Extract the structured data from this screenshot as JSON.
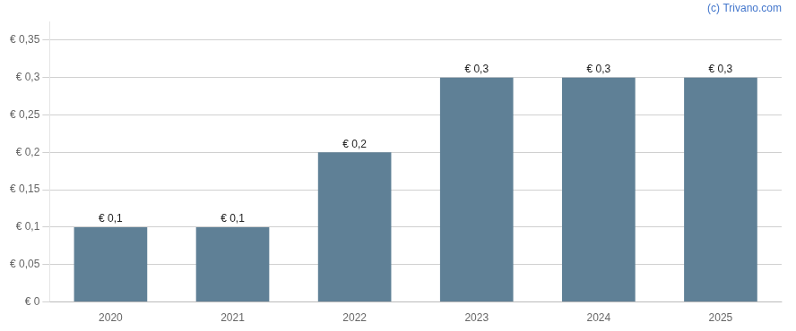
{
  "chart_data": {
    "type": "bar",
    "categories": [
      "2020",
      "2021",
      "2022",
      "2023",
      "2024",
      "2025"
    ],
    "values": [
      0.1,
      0.1,
      0.2,
      0.3,
      0.3,
      0.3
    ],
    "value_labels": [
      "€ 0,1",
      "€ 0,1",
      "€ 0,2",
      "€ 0,3",
      "€ 0,3",
      "€ 0,3"
    ],
    "data_labels": true,
    "color": "#5f8096",
    "ylim": [
      0,
      0.375
    ],
    "yticks": [
      {
        "value": 0,
        "label": "€ 0"
      },
      {
        "value": 0.05,
        "label": "€ 0,05"
      },
      {
        "value": 0.1,
        "label": "€ 0,1"
      },
      {
        "value": 0.15,
        "label": "€ 0,15"
      },
      {
        "value": 0.2,
        "label": "€ 0,2"
      },
      {
        "value": 0.25,
        "label": "€ 0,25"
      },
      {
        "value": 0.3,
        "label": "€ 0,3"
      },
      {
        "value": 0.35,
        "label": "€ 0,35"
      }
    ],
    "grid": true,
    "annotations": [
      {
        "text": "(c) Trivano.com",
        "color": "#4477cc"
      }
    ]
  }
}
